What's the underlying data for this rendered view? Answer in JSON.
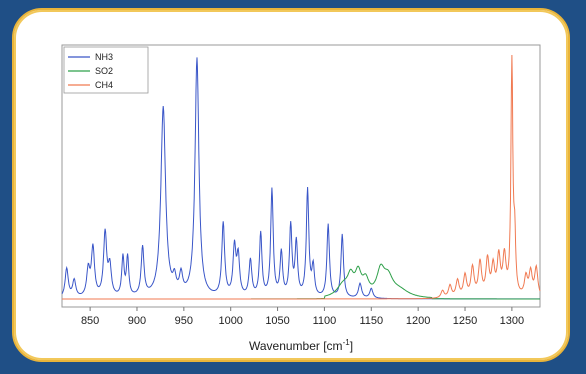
{
  "chart_data": {
    "type": "line",
    "xlabel": "Wavenumber [cm",
    "xlabel_sup": "-1",
    "xlabel_close": "]",
    "xlim": [
      820,
      1330
    ],
    "ylim": [
      0,
      1.0
    ],
    "xticks": [
      850,
      900,
      950,
      1000,
      1050,
      1100,
      1150,
      1200,
      1250,
      1300
    ],
    "tick_labels": [
      "850",
      "900",
      "950",
      "1000",
      "1050",
      "1100",
      "1150",
      "1200",
      "1250",
      "1300"
    ],
    "legend_position": "top-left",
    "series": [
      {
        "name": "NH3",
        "color": "#3a56c8",
        "peaks": [
          [
            825,
            0.12,
            2
          ],
          [
            833,
            0.07,
            2
          ],
          [
            848,
            0.11,
            2
          ],
          [
            853,
            0.2,
            2
          ],
          [
            866,
            0.26,
            2
          ],
          [
            871,
            0.12,
            2
          ],
          [
            885,
            0.16,
            1.5
          ],
          [
            890,
            0.16,
            1.5
          ],
          [
            906,
            0.2,
            1.8
          ],
          [
            928,
            0.78,
            3
          ],
          [
            940,
            0.06,
            2
          ],
          [
            947,
            0.08,
            2
          ],
          [
            964,
            0.98,
            2.5
          ],
          [
            992,
            0.3,
            1.8
          ],
          [
            1004,
            0.2,
            1.8
          ],
          [
            1008,
            0.16,
            1.8
          ],
          [
            1021,
            0.15,
            1.8
          ],
          [
            1032,
            0.26,
            1.6
          ],
          [
            1044,
            0.44,
            1.6
          ],
          [
            1054,
            0.18,
            1.6
          ],
          [
            1064,
            0.29,
            1.6
          ],
          [
            1070,
            0.22,
            1.6
          ],
          [
            1082,
            0.44,
            1.6
          ],
          [
            1088,
            0.12,
            1.6
          ],
          [
            1104,
            0.3,
            1.6
          ],
          [
            1119,
            0.26,
            1.6
          ],
          [
            1138,
            0.06,
            2
          ],
          [
            1150,
            0.04,
            2
          ]
        ]
      },
      {
        "name": "SO2",
        "color": "#2fa04a",
        "peaks": [
          [
            1120,
            0.05,
            8
          ],
          [
            1128,
            0.07,
            4
          ],
          [
            1136,
            0.09,
            4
          ],
          [
            1144,
            0.06,
            4
          ],
          [
            1160,
            0.1,
            5
          ],
          [
            1168,
            0.07,
            6
          ],
          [
            1180,
            0.03,
            12
          ]
        ]
      },
      {
        "name": "CH4",
        "color": "#f07a52",
        "peaks": [
          [
            1226,
            0.03,
            2
          ],
          [
            1234,
            0.05,
            2
          ],
          [
            1242,
            0.07,
            2
          ],
          [
            1250,
            0.09,
            2
          ],
          [
            1258,
            0.12,
            2
          ],
          [
            1266,
            0.14,
            2
          ],
          [
            1274,
            0.15,
            2
          ],
          [
            1280,
            0.12,
            2
          ],
          [
            1286,
            0.16,
            2
          ],
          [
            1292,
            0.16,
            2
          ],
          [
            1300,
            0.96,
            1.2
          ],
          [
            1303,
            0.22,
            1.2
          ],
          [
            1315,
            0.08,
            2
          ],
          [
            1320,
            0.1,
            2
          ],
          [
            1326,
            0.12,
            2
          ]
        ]
      }
    ]
  }
}
